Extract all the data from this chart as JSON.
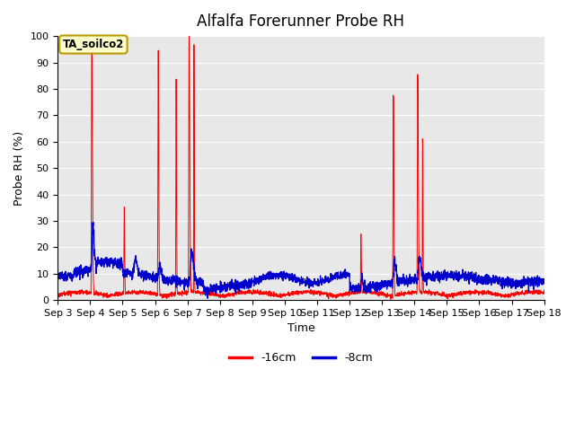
{
  "title": "Alfalfa Forerunner Probe RH",
  "xlabel": "Time",
  "ylabel": "Probe RH (%)",
  "ylim": [
    0,
    100
  ],
  "bg_color": "#e8e8e8",
  "legend_label": "TA_soilco2",
  "legend_bg": "#ffffcc",
  "legend_border": "#bb9900",
  "line1_color": "#ff0000",
  "line2_color": "#0000cc",
  "line1_label": "-16cm",
  "line2_label": "-8cm",
  "title_fontsize": 12,
  "axis_fontsize": 9,
  "tick_fontsize": 8,
  "xtick_labels": [
    "Sep 3",
    "Sep 4",
    "Sep 5",
    "Sep 6",
    "Sep 7",
    "Sep 8",
    "Sep 9",
    "Sep 10",
    "Sep 11",
    "Sep 12",
    "Sep 13",
    "Sep 14",
    "Sep 15",
    "Sep 16",
    "Sep 17",
    "Sep 18"
  ]
}
